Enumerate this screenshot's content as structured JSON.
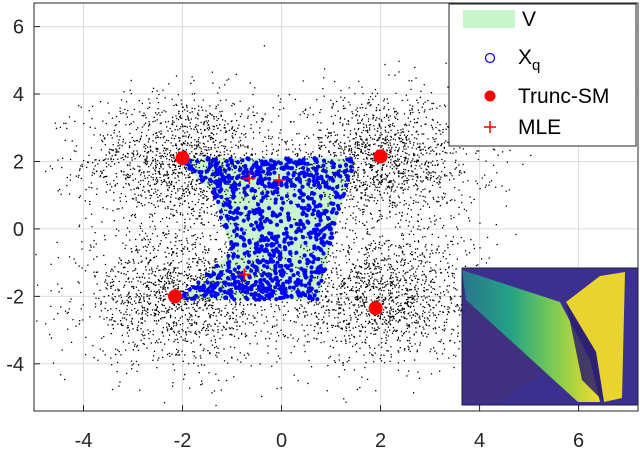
{
  "chart_data": {
    "type": "scatter",
    "title": "",
    "xlabel": "",
    "ylabel": "",
    "xlim": [
      -5,
      7.2
    ],
    "ylim": [
      -5.4,
      6.7
    ],
    "grid": true,
    "legend_placement": "top-right",
    "xticks": [
      -4,
      -2,
      0,
      2,
      4,
      6
    ],
    "yticks": [
      -4,
      -2,
      0,
      2,
      4,
      6
    ],
    "xtick_labels": [
      "-4",
      "-2",
      "0",
      "2",
      "4",
      "6"
    ],
    "ytick_labels": [
      "-4",
      "-2",
      "0",
      "2",
      "4",
      "6"
    ],
    "background_points": {
      "color": "#000000",
      "count_per_cluster": 1500,
      "cluster_centers": [
        [
          -2,
          2
        ],
        [
          2,
          2
        ],
        [
          -2,
          -2
        ],
        [
          2,
          -2
        ]
      ],
      "cluster_spread": 1.0
    },
    "series": [
      {
        "name": "V",
        "kind": "region",
        "color": "#c9f5cc",
        "polygon": [
          [
            -2.1,
            2.1
          ],
          [
            1.5,
            2.1
          ],
          [
            1.1,
            0.2
          ],
          [
            0.75,
            -2.1
          ],
          [
            -2.1,
            -2.1
          ],
          [
            -1.0,
            -0.7
          ],
          [
            -1.4,
            1.1
          ]
        ]
      },
      {
        "name": "X",
        "name_subscript": "q",
        "kind": "points",
        "color": "#0000ff",
        "count": 900
      },
      {
        "name": "Trunc-SM",
        "kind": "points",
        "color": "#ff0000",
        "x": [
          -2.0,
          2.0,
          -2.15,
          1.9
        ],
        "y": [
          2.1,
          2.15,
          -2.0,
          -2.35
        ]
      },
      {
        "name": "MLE",
        "kind": "points",
        "color": "#ff0000",
        "x": [
          -0.65,
          -0.05,
          -0.75
        ],
        "y": [
          1.5,
          1.45,
          -1.35
        ]
      }
    ],
    "inset": {
      "description": "colormap surface",
      "colors": [
        "#3b2f8f",
        "#2a788e",
        "#22a884",
        "#7ad151",
        "#fde725"
      ]
    }
  }
}
